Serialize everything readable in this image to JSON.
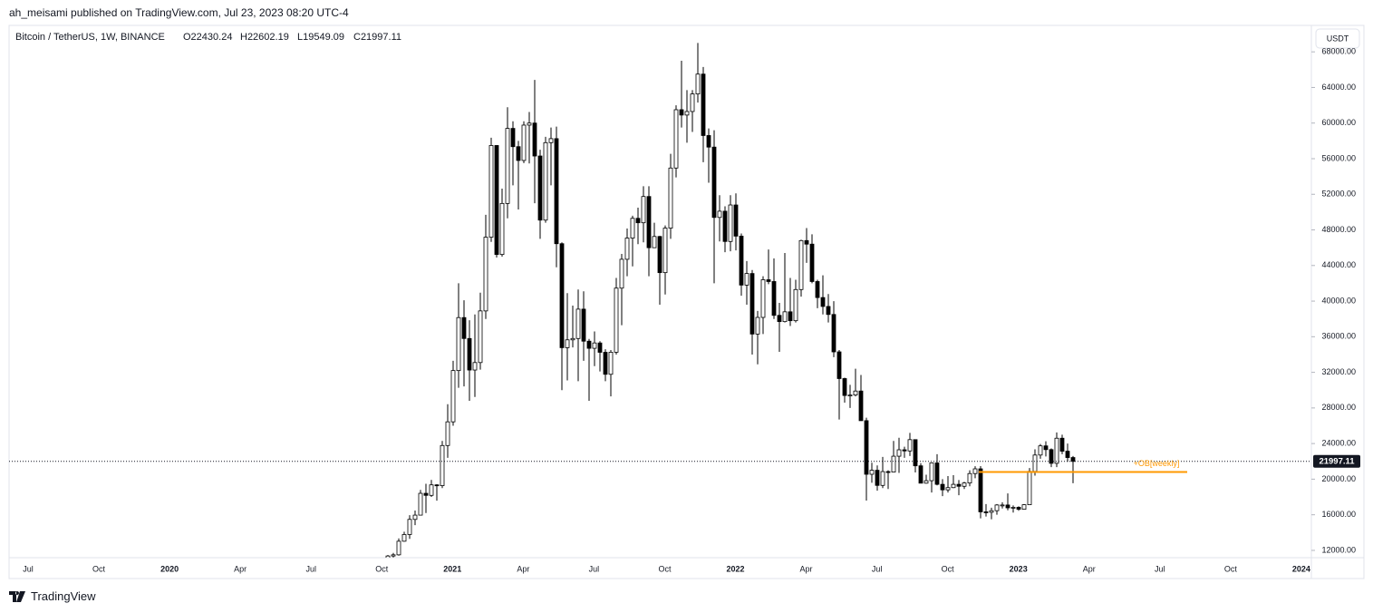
{
  "header": {
    "publisher": "ah_meisami published on TradingView.com, Jul 23, 2023 08:20 UTC-4",
    "footer": "TradingView",
    "currency_button": "USDT"
  },
  "chart_data": {
    "type": "candlestick",
    "title": "Bitcoin / TetherUS, 1W, BINANCE",
    "ohlc_legend": [
      "O22430.24",
      "H22602.19",
      "L19549.09",
      "C21997.11"
    ],
    "up_color": "#ffffff",
    "down_color": "#000000",
    "border_color": "#000000",
    "ylim": [
      11180,
      70870
    ],
    "yticks": [
      {
        "value": 12000,
        "label": "12000.00"
      },
      {
        "value": 16000,
        "label": "16000.00"
      },
      {
        "value": 20000,
        "label": "20000.00"
      },
      {
        "value": 24000,
        "label": "24000.00"
      },
      {
        "value": 28000,
        "label": "28000.00"
      },
      {
        "value": 32000,
        "label": "32000.00"
      },
      {
        "value": 36000,
        "label": "36000.00"
      },
      {
        "value": 40000,
        "label": "40000.00"
      },
      {
        "value": 44000,
        "label": "44000.00"
      },
      {
        "value": 48000,
        "label": "48000.00"
      },
      {
        "value": 52000,
        "label": "52000.00"
      },
      {
        "value": 56000,
        "label": "56000.00"
      },
      {
        "value": 60000,
        "label": "60000.00"
      },
      {
        "value": 64000,
        "label": "64000.00"
      },
      {
        "value": 68000,
        "label": "68000.00"
      }
    ],
    "x_labels": [
      "Jul",
      "Oct",
      "2020",
      "Apr",
      "Jul",
      "Oct",
      "2021",
      "Apr",
      "Jul",
      "Oct",
      "2022",
      "Apr",
      "Jul",
      "Oct",
      "2023",
      "Apr",
      "Jul",
      "Oct",
      "2024"
    ],
    "annotations": [
      {
        "text": "+OB[weekly]",
        "value": 20800,
        "color": "#ff9800"
      }
    ],
    "candles": [
      [
        10670,
        11490,
        10540,
        11370
      ],
      [
        11370,
        11720,
        11200,
        11500
      ],
      [
        11500,
        13350,
        11410,
        13030
      ],
      [
        13030,
        14100,
        12980,
        13780
      ],
      [
        13780,
        15960,
        13290,
        15480
      ],
      [
        15480,
        16480,
        14840,
        15960
      ],
      [
        15960,
        18800,
        15950,
        18410
      ],
      [
        18410,
        19480,
        16200,
        18180
      ],
      [
        18180,
        19920,
        18000,
        19360
      ],
      [
        19360,
        19430,
        17580,
        19270
      ],
      [
        19270,
        24300,
        19000,
        23780
      ],
      [
        23780,
        28420,
        22400,
        26440
      ],
      [
        26440,
        33300,
        26000,
        32200
      ],
      [
        32200,
        42000,
        30260,
        38150
      ],
      [
        38150,
        40100,
        30420,
        35800
      ],
      [
        35800,
        37850,
        28800,
        32260
      ],
      [
        32260,
        38500,
        29240,
        33100
      ],
      [
        33100,
        40950,
        32300,
        38900
      ],
      [
        38900,
        49700,
        37990,
        47180
      ],
      [
        47180,
        58350,
        46650,
        57480
      ],
      [
        57480,
        57520,
        44900,
        45240
      ],
      [
        45240,
        52640,
        45000,
        50970
      ],
      [
        50970,
        61780,
        49300,
        59400
      ],
      [
        59400,
        60200,
        53000,
        57350
      ],
      [
        57350,
        58000,
        50300,
        55800
      ],
      [
        55800,
        60200,
        55500,
        59770
      ],
      [
        59770,
        61250,
        55470,
        60000
      ],
      [
        60000,
        64850,
        51000,
        56300
      ],
      [
        56300,
        57000,
        47000,
        49100
      ],
      [
        49100,
        58460,
        48800,
        57800
      ],
      [
        57800,
        59500,
        53000,
        58250
      ],
      [
        58250,
        59600,
        43800,
        46450
      ],
      [
        46450,
        46600,
        30000,
        34770
      ],
      [
        34770,
        40900,
        31100,
        35650
      ],
      [
        35650,
        39500,
        34800,
        35800
      ],
      [
        35800,
        41300,
        31000,
        39100
      ],
      [
        39100,
        41100,
        33300,
        35500
      ],
      [
        35500,
        35750,
        28800,
        34700
      ],
      [
        34700,
        36600,
        32700,
        35300
      ],
      [
        35300,
        35500,
        32100,
        34250
      ],
      [
        34250,
        34600,
        31000,
        31780
      ],
      [
        31780,
        34500,
        29300,
        34260
      ],
      [
        34260,
        42600,
        34000,
        41460
      ],
      [
        41460,
        45300,
        37300,
        44700
      ],
      [
        44700,
        48150,
        42800,
        47080
      ],
      [
        47080,
        49600,
        43900,
        49300
      ],
      [
        49300,
        50500,
        46400,
        48800
      ],
      [
        48800,
        52900,
        46600,
        51750
      ],
      [
        51750,
        52900,
        42800,
        46000
      ],
      [
        46000,
        48800,
        46000,
        47260
      ],
      [
        47260,
        47330,
        39600,
        43200
      ],
      [
        43200,
        48500,
        40750,
        48200
      ],
      [
        48200,
        56550,
        47000,
        54950
      ],
      [
        54950,
        62000,
        53900,
        61500
      ],
      [
        61500,
        67000,
        59500,
        60900
      ],
      [
        60900,
        63700,
        57800,
        61300
      ],
      [
        61300,
        63700,
        59000,
        63270
      ],
      [
        63270,
        69000,
        62300,
        65500
      ],
      [
        65500,
        66300,
        55600,
        58600
      ],
      [
        58600,
        59400,
        53300,
        57300
      ],
      [
        57300,
        59200,
        42000,
        49400
      ],
      [
        49400,
        51900,
        46700,
        50100
      ],
      [
        50100,
        50650,
        45500,
        46700
      ],
      [
        46700,
        51900,
        45600,
        50800
      ],
      [
        50800,
        52100,
        45700,
        47300
      ],
      [
        47300,
        47600,
        40600,
        41800
      ],
      [
        41800,
        44500,
        39600,
        43100
      ],
      [
        43100,
        43500,
        34000,
        36300
      ],
      [
        36300,
        38900,
        32900,
        38170
      ],
      [
        38170,
        42800,
        36300,
        42400
      ],
      [
        42400,
        45800,
        41900,
        42200
      ],
      [
        42200,
        44800,
        38000,
        38400
      ],
      [
        38400,
        39800,
        34300,
        37700
      ],
      [
        37700,
        45400,
        37600,
        38800
      ],
      [
        38800,
        42600,
        37200,
        37800
      ],
      [
        37800,
        42400,
        37600,
        41300
      ],
      [
        41300,
        46900,
        40500,
        46800
      ],
      [
        46800,
        48200,
        44300,
        46400
      ],
      [
        46400,
        47500,
        42000,
        42200
      ],
      [
        42200,
        42400,
        39200,
        40400
      ],
      [
        40400,
        42900,
        38500,
        39400
      ],
      [
        39400,
        40800,
        37600,
        38500
      ],
      [
        38500,
        40000,
        33700,
        34300
      ],
      [
        34300,
        34500,
        26700,
        31300
      ],
      [
        31300,
        31400,
        28600,
        29400
      ],
      [
        29400,
        30600,
        28000,
        29450
      ],
      [
        29450,
        32400,
        29300,
        29900
      ],
      [
        29900,
        31700,
        26600,
        26570
      ],
      [
        26570,
        26900,
        17600,
        20550
      ],
      [
        20550,
        21850,
        19600,
        21000
      ],
      [
        21000,
        21550,
        18700,
        19300
      ],
      [
        19300,
        22500,
        19000,
        20850
      ],
      [
        20850,
        21000,
        18900,
        20800
      ],
      [
        20800,
        24300,
        20750,
        22580
      ],
      [
        22580,
        24650,
        20700,
        23300
      ],
      [
        23300,
        23650,
        22400,
        23170
      ],
      [
        23170,
        25200,
        22600,
        24440
      ],
      [
        24440,
        24450,
        20760,
        21500
      ],
      [
        21500,
        21800,
        19800,
        19550
      ],
      [
        19550,
        20500,
        19500,
        19830
      ],
      [
        19830,
        21850,
        18500,
        21820
      ],
      [
        21820,
        22800,
        19300,
        19420
      ],
      [
        19420,
        20000,
        18100,
        18800
      ],
      [
        18800,
        20350,
        18500,
        19050
      ],
      [
        19050,
        20450,
        19000,
        19420
      ],
      [
        19420,
        19900,
        18200,
        19200
      ],
      [
        19200,
        19700,
        18900,
        19570
      ],
      [
        19570,
        21000,
        19200,
        20630
      ],
      [
        20630,
        21450,
        20100,
        21160
      ],
      [
        21160,
        21470,
        15600,
        16330
      ],
      [
        16330,
        17200,
        15800,
        16280
      ],
      [
        16280,
        16800,
        15500,
        16460
      ],
      [
        16460,
        17200,
        16000,
        17100
      ],
      [
        17100,
        17400,
        16700,
        17100
      ],
      [
        17100,
        18400,
        16500,
        16780
      ],
      [
        16780,
        17050,
        16250,
        16840
      ],
      [
        16840,
        16950,
        16450,
        16620
      ],
      [
        16620,
        17200,
        16600,
        17130
      ],
      [
        17130,
        21250,
        17100,
        20880
      ],
      [
        20880,
        23350,
        20400,
        22710
      ],
      [
        22710,
        23950,
        22300,
        23740
      ],
      [
        23740,
        24250,
        22550,
        23320
      ],
      [
        23320,
        23450,
        21350,
        21780
      ],
      [
        21780,
        25250,
        21350,
        24600
      ],
      [
        24600,
        25000,
        22800,
        23140
      ],
      [
        23140,
        24000,
        21950,
        22430
      ],
      [
        22430.24,
        22602.19,
        19549.09,
        21997.11
      ]
    ]
  }
}
